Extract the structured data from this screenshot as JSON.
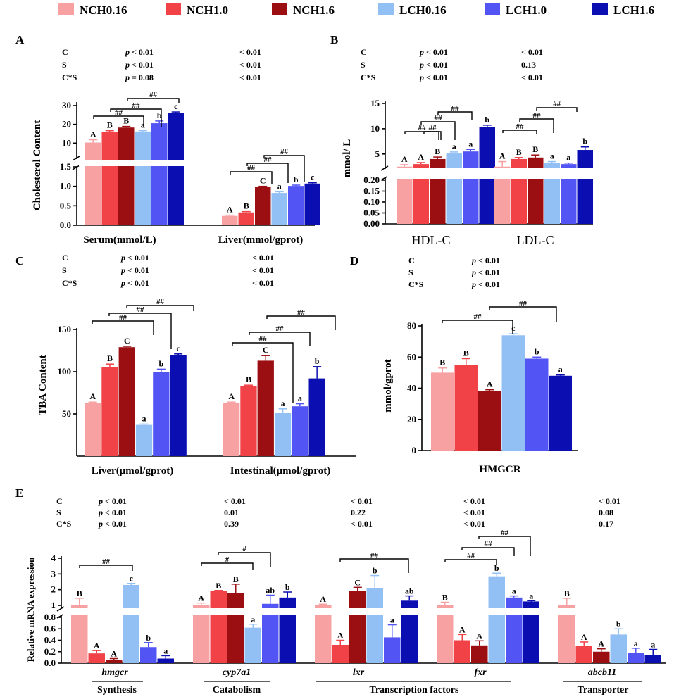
{
  "colors": {
    "NCH0.16": "#f7a1a3",
    "NCH1.0": "#f04247",
    "NCH1.6": "#9b0f12",
    "LCH0.16": "#92c0f5",
    "LCH1.0": "#5254f4",
    "LCH1.6": "#0b0eb0"
  },
  "legend": [
    "NCH0.16",
    "NCH1.0",
    "NCH1.6",
    "LCH0.16",
    "LCH1.0",
    "LCH1.6"
  ],
  "chart_data": [
    {
      "panel": "A",
      "type": "bar",
      "ylabel": "Cholesterol Content",
      "categories": [
        "Serum(mmol/L)",
        "Liver(mmol/gprot)"
      ],
      "series": [
        {
          "name": "NCH0.16",
          "values": [
            10.3,
            0.24
          ],
          "errors": [
            1.5,
            0.02
          ]
        },
        {
          "name": "NCH1.0",
          "values": [
            15.8,
            0.33
          ],
          "errors": [
            0.8,
            0.02
          ]
        },
        {
          "name": "NCH1.6",
          "values": [
            18.3,
            0.98
          ],
          "errors": [
            0.6,
            0.02
          ]
        },
        {
          "name": "LCH0.16",
          "values": [
            16.2,
            0.83
          ],
          "errors": [
            0.5,
            0.03
          ]
        },
        {
          "name": "LCH1.0",
          "values": [
            20.6,
            1.01
          ],
          "errors": [
            1.2,
            0.02
          ]
        },
        {
          "name": "LCH1.6",
          "values": [
            26.2,
            1.07
          ],
          "errors": [
            0.4,
            0.02
          ]
        }
      ],
      "letters": [
        [
          "A",
          "B",
          "B",
          "a",
          "b",
          "c"
        ],
        [
          "A",
          "B",
          "C",
          "a",
          "b",
          "c"
        ]
      ],
      "stats": [
        {
          "label": "C",
          "values": [
            "< 0.01",
            "< 0.01"
          ]
        },
        {
          "label": "S",
          "values": [
            "< 0.01",
            "< 0.01"
          ]
        },
        {
          "label": "C*S",
          "values": [
            "= 0.08",
            "< 0.01"
          ]
        }
      ],
      "axis_bottom": {
        "ticks": [
          "0.0",
          "0.5",
          "1.0",
          "1.5"
        ]
      },
      "axis_top": {
        "ticks": [
          "10",
          "20",
          "30"
        ]
      },
      "hash": "##"
    },
    {
      "panel": "B",
      "type": "bar",
      "ylabel": "mmol/ L",
      "categories": [
        "HDL-C",
        "LDL-C"
      ],
      "series": [
        {
          "name": "NCH0.16",
          "values": [
            2.5,
            2.5
          ],
          "errors": [
            0.4,
            1.0
          ]
        },
        {
          "name": "NCH1.0",
          "values": [
            3.0,
            4.0
          ],
          "errors": [
            0.3,
            0.3
          ]
        },
        {
          "name": "NCH1.6",
          "values": [
            4.0,
            4.3
          ],
          "errors": [
            0.4,
            0.5
          ]
        },
        {
          "name": "LCH0.16",
          "values": [
            5.1,
            3.2
          ],
          "errors": [
            0.3,
            0.3
          ]
        },
        {
          "name": "LCH1.0",
          "values": [
            5.5,
            3.0
          ],
          "errors": [
            0.4,
            0.2
          ]
        },
        {
          "name": "LCH1.6",
          "values": [
            10.3,
            5.8
          ],
          "errors": [
            0.4,
            0.6
          ]
        }
      ],
      "letters": [
        [
          "A",
          "A",
          "B",
          "a",
          "a",
          "b"
        ],
        [
          "A",
          "B",
          "B",
          "a",
          "a",
          "b"
        ]
      ],
      "stats": [
        {
          "label": "C",
          "values": [
            "< 0.01",
            "< 0.01"
          ]
        },
        {
          "label": "S",
          "values": [
            "< 0.01",
            "0.13"
          ]
        },
        {
          "label": "C*S",
          "values": [
            "< 0.01",
            "< 0.01"
          ]
        }
      ],
      "axis_bottom": {
        "ticks": [
          "0.00",
          "0.05",
          "0.10",
          "0.15",
          "0.20"
        ]
      },
      "axis_top": {
        "ticks": [
          "5",
          "10",
          "15"
        ]
      },
      "hash": "##"
    },
    {
      "panel": "C",
      "type": "bar",
      "ylabel": "TBA Content",
      "categories": [
        "Liver(μmol/gprot)",
        "Intestinal(μmol/gprot)"
      ],
      "series": [
        {
          "name": "NCH0.16",
          "values": [
            63,
            63
          ],
          "errors": [
            1,
            1
          ]
        },
        {
          "name": "NCH1.0",
          "values": [
            105,
            83
          ],
          "errors": [
            4,
            1
          ]
        },
        {
          "name": "NCH1.6",
          "values": [
            129,
            113
          ],
          "errors": [
            1,
            6
          ]
        },
        {
          "name": "LCH0.16",
          "values": [
            37,
            51
          ],
          "errors": [
            1,
            5
          ]
        },
        {
          "name": "LCH1.0",
          "values": [
            100,
            59
          ],
          "errors": [
            3,
            3
          ]
        },
        {
          "name": "LCH1.6",
          "values": [
            120,
            92
          ],
          "errors": [
            1,
            14
          ]
        }
      ],
      "letters": [
        [
          "A",
          "B",
          "C",
          "a",
          "b",
          "c"
        ],
        [
          "A",
          "B",
          "C",
          "a",
          "a",
          "b"
        ]
      ],
      "stats": [
        {
          "label": "C",
          "values": [
            "< 0.01",
            "< 0.01"
          ]
        },
        {
          "label": "S",
          "values": [
            "< 0.01",
            "< 0.01"
          ]
        },
        {
          "label": "C*S",
          "values": [
            "< 0.01",
            "< 0.01"
          ]
        }
      ],
      "ylim": [
        0,
        150
      ],
      "ticks": [
        "50",
        "100",
        "150"
      ],
      "hash": "##"
    },
    {
      "panel": "D",
      "type": "bar",
      "ylabel": "mmol/gprot",
      "categories": [
        "HMGCR"
      ],
      "series": [
        {
          "name": "NCH0.16",
          "values": [
            50
          ],
          "errors": [
            3
          ]
        },
        {
          "name": "NCH1.0",
          "values": [
            55
          ],
          "errors": [
            4
          ]
        },
        {
          "name": "NCH1.6",
          "values": [
            38
          ],
          "errors": [
            1
          ]
        },
        {
          "name": "LCH0.16",
          "values": [
            74
          ],
          "errors": [
            1
          ]
        },
        {
          "name": "LCH1.0",
          "values": [
            59
          ],
          "errors": [
            1
          ]
        },
        {
          "name": "LCH1.6",
          "values": [
            48
          ],
          "errors": [
            0.5
          ]
        }
      ],
      "letters": [
        [
          "B",
          "B",
          "A",
          "c",
          "b",
          "a"
        ]
      ],
      "stats": [
        {
          "label": "C",
          "values": [
            "< 0.01"
          ]
        },
        {
          "label": "S",
          "values": [
            "< 0.01"
          ]
        },
        {
          "label": "C*S",
          "values": [
            "< 0.01"
          ]
        }
      ],
      "ylim": [
        0,
        80
      ],
      "ticks": [
        "0",
        "20",
        "40",
        "60",
        "80"
      ],
      "hash": "##"
    },
    {
      "panel": "E",
      "type": "bar",
      "ylabel": "Relative mRNA expression",
      "categories": [
        "hmgcr",
        "cyp7a1",
        "lxr",
        "fxr",
        "abcb11"
      ],
      "groups": [
        "Synthesis",
        "Catabolism",
        "Transcription factors",
        "Transporter"
      ],
      "series": [
        {
          "name": "NCH0.16",
          "values": [
            1.0,
            1.0,
            1.0,
            1.0,
            1.0
          ],
          "errors": [
            0.45,
            0.15,
            0.08,
            0.2,
            0.45
          ]
        },
        {
          "name": "NCH1.0",
          "values": [
            0.17,
            1.9,
            0.32,
            0.4,
            0.3
          ],
          "errors": [
            0.05,
            0.05,
            0.08,
            0.1,
            0.07
          ]
        },
        {
          "name": "NCH1.6",
          "values": [
            0.06,
            1.8,
            1.9,
            0.31,
            0.2
          ],
          "errors": [
            0.02,
            0.55,
            0.25,
            0.08,
            0.05
          ]
        },
        {
          "name": "LCH0.16",
          "values": [
            2.3,
            0.62,
            2.1,
            2.85,
            0.5
          ],
          "errors": [
            0.1,
            0.06,
            0.8,
            0.2,
            0.1
          ]
        },
        {
          "name": "LCH1.0",
          "values": [
            0.28,
            1.1,
            0.45,
            1.5,
            0.18
          ],
          "errors": [
            0.08,
            0.55,
            0.22,
            0.1,
            0.08
          ]
        },
        {
          "name": "LCH1.6",
          "values": [
            0.08,
            1.5,
            1.3,
            1.25,
            0.14
          ],
          "errors": [
            0.05,
            0.35,
            0.3,
            0.05,
            0.1
          ]
        }
      ],
      "letters": [
        [
          "B",
          "A",
          "A",
          "c",
          "b",
          "a"
        ],
        [
          "A",
          "B",
          "B",
          "a",
          "ab",
          "b"
        ],
        [
          "A",
          "A",
          "C",
          "b",
          "a",
          "ab"
        ],
        [
          "B",
          "A",
          "A",
          "b",
          "a",
          "a"
        ],
        [
          "B",
          "A",
          "A",
          "b",
          "a",
          "a"
        ]
      ],
      "stats": [
        {
          "label": "C",
          "values": [
            "< 0.01",
            "< 0.01",
            "< 0.01",
            "< 0.01",
            "< 0.01"
          ]
        },
        {
          "label": "S",
          "values": [
            "< 0.01",
            "0.01",
            "0.22",
            "< 0.01",
            "0.08"
          ]
        },
        {
          "label": "C*S",
          "values": [
            "< 0.01",
            "0.39",
            "< 0.01",
            "< 0.01",
            "0.17"
          ]
        }
      ],
      "axis_bottom": {
        "ticks": [
          "0.0",
          "0.2",
          "0.4",
          "0.6",
          "0.8"
        ]
      },
      "axis_top": {
        "ticks": [
          "1",
          "2",
          "3",
          "4"
        ]
      },
      "hash": [
        "##",
        "#",
        "#",
        "##",
        "##",
        "##"
      ]
    }
  ],
  "stat_prefix": "p"
}
